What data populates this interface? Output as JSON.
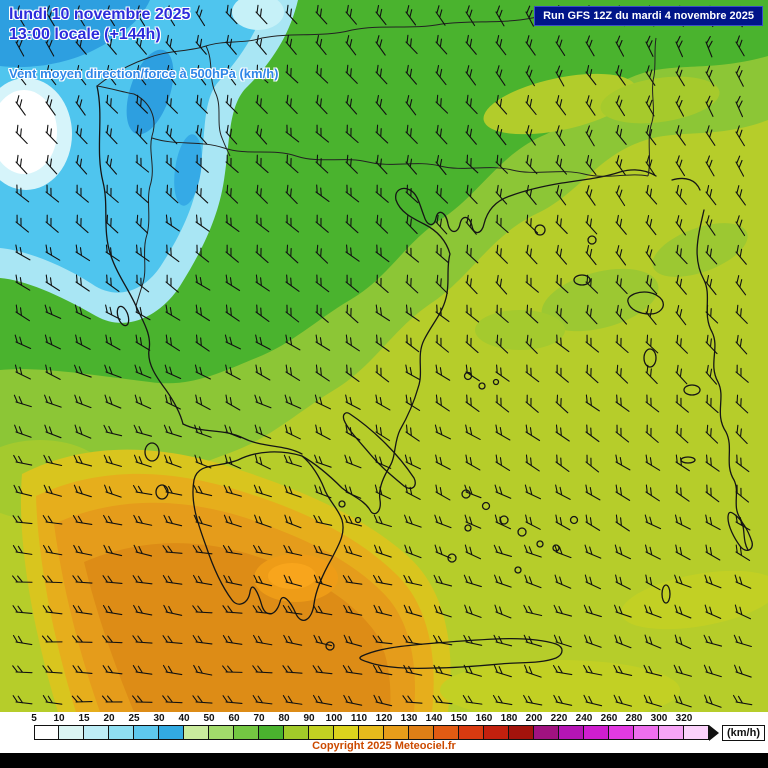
{
  "header": {
    "date_line": "lundi 10 novembre 2025",
    "time_line": "13:00 locale (+144h)",
    "subtitle": "Vent moyen direction/force à 500hPa (km/h)",
    "run_info": "Run GFS 12Z du mardi 4 novembre 2025"
  },
  "legend": {
    "unit_label": "(km/h)",
    "values": [
      5,
      10,
      15,
      20,
      25,
      30,
      40,
      50,
      60,
      70,
      80,
      90,
      100,
      110,
      120,
      130,
      140,
      150,
      160,
      180,
      200,
      220,
      240,
      260,
      280,
      300,
      320
    ],
    "colors": [
      "#ffffff",
      "#dbf5f3",
      "#bdedf6",
      "#8fdff2",
      "#5ec8ee",
      "#32aae2",
      "#c9eb9d",
      "#a2db6b",
      "#74c742",
      "#4ab32e",
      "#a2ca29",
      "#c2d122",
      "#dcd31d",
      "#e6ba1c",
      "#e79d1a",
      "#df7f16",
      "#e25b13",
      "#d93a10",
      "#c2200e",
      "#a3130c",
      "#a01280",
      "#b515b5",
      "#cf1ecf",
      "#e23ae2",
      "#ee6fee",
      "#f6a4f6",
      "#fbd2fb"
    ]
  },
  "footer": {
    "copyright": "Copyright 2025 Meteociel.fr"
  },
  "map": {
    "wind_grid": {
      "spacing": 30,
      "direction_grid": [
        [
          62,
          55,
          50,
          55,
          62,
          68
        ],
        [
          48,
          45,
          42,
          48,
          55,
          60
        ],
        [
          30,
          34,
          38,
          42,
          48,
          52
        ],
        [
          16,
          20,
          26,
          32,
          38,
          42
        ],
        [
          6,
          8,
          12,
          18,
          24,
          28
        ],
        [
          2,
          4,
          6,
          10,
          12,
          14
        ]
      ]
    }
  }
}
